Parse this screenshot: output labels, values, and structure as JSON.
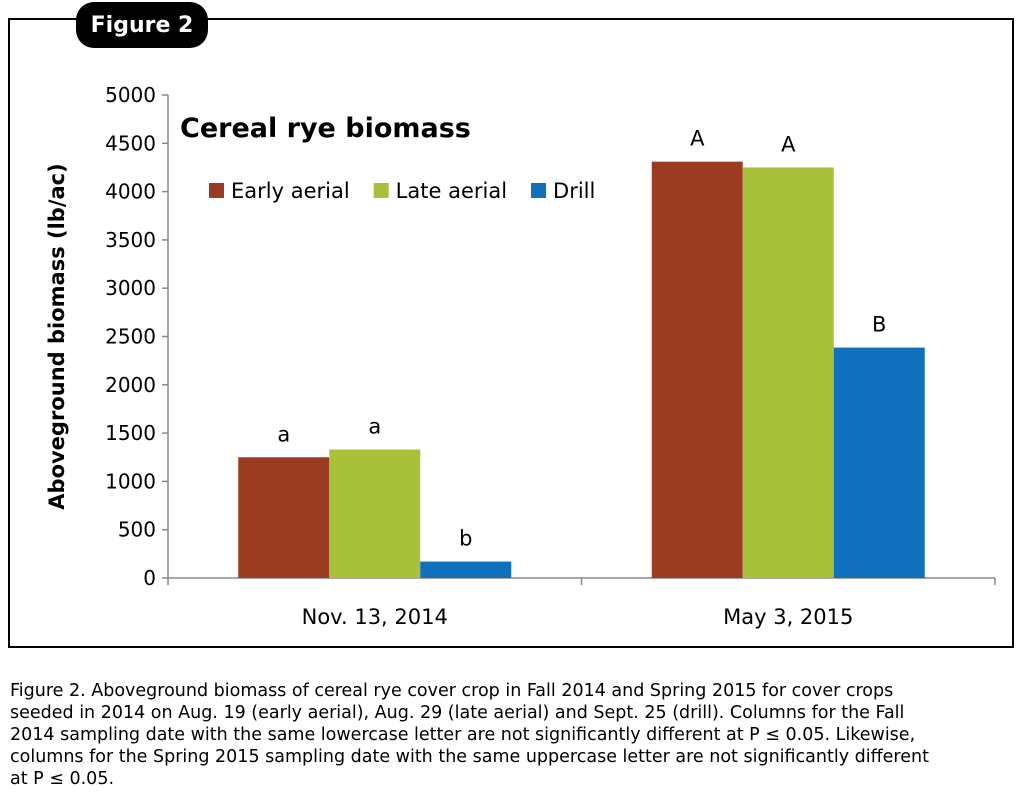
{
  "figure_label": "Figure 2",
  "chart_data": {
    "type": "bar",
    "title": "Cereal rye biomass",
    "xlabel": "",
    "ylabel": "Aboveground biomass (lb/ac)",
    "categories": [
      "Nov. 13, 2014",
      "May 3, 2015"
    ],
    "ylim": [
      0,
      5000
    ],
    "yticks": [
      0,
      500,
      1000,
      1500,
      2000,
      2500,
      3000,
      3500,
      4000,
      4500,
      5000
    ],
    "grid": false,
    "legend_position": "top-left",
    "series": [
      {
        "name": "Early aerial",
        "color": "#9B3B22",
        "values": [
          1250,
          4310
        ],
        "labels": [
          "a",
          "A"
        ]
      },
      {
        "name": "Late aerial",
        "color": "#A8C03A",
        "values": [
          1330,
          4250
        ],
        "labels": [
          "a",
          "A"
        ]
      },
      {
        "name": "Drill",
        "color": "#1070BD",
        "values": [
          170,
          2385
        ],
        "labels": [
          "b",
          "B"
        ]
      }
    ]
  },
  "caption": {
    "lines": [
      "Figure 2. Aboveground biomass of cereal rye cover crop in Fall 2014 and Spring 2015 for cover crops",
      "seeded in 2014 on Aug. 19 (early aerial), Aug. 29 (late aerial) and Sept. 25 (drill).  Columns for the Fall",
      "2014 sampling date with the same lowercase letter are not significantly different at P ≤ 0.05. Likewise,",
      "columns for the Spring 2015 sampling date with the same uppercase letter are not significantly different",
      "at P ≤ 0.05."
    ]
  }
}
